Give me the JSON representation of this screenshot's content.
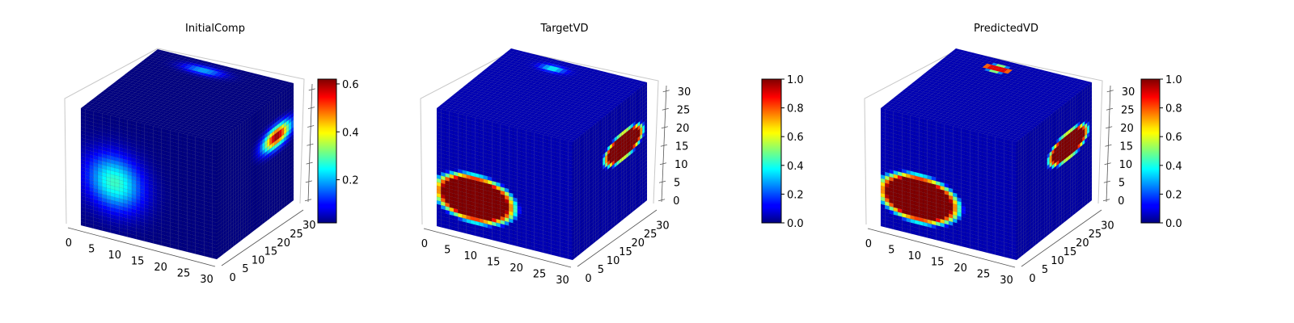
{
  "figure": {
    "panels": [
      {
        "title": "InitialComp",
        "colorbar": {
          "colormap": "jet",
          "min": 0.02,
          "max": 0.62,
          "ticks": [
            "0.2",
            "0.4",
            "0.6"
          ]
        },
        "x_ticks": [
          "0",
          "5",
          "10",
          "15",
          "20",
          "25",
          "30"
        ],
        "y_ticks": [
          "0",
          "5",
          "10",
          "15",
          "20",
          "25",
          "30"
        ],
        "z_ticks": []
      },
      {
        "title": "TargetVD",
        "colorbar": {
          "colormap": "jet",
          "min": 0.0,
          "max": 1.0,
          "ticks": [
            "0.0",
            "0.2",
            "0.4",
            "0.6",
            "0.8",
            "1.0"
          ]
        },
        "x_ticks": [
          "0",
          "5",
          "10",
          "15",
          "20",
          "25",
          "30"
        ],
        "y_ticks": [
          "0",
          "5",
          "10",
          "15",
          "20",
          "25",
          "30"
        ],
        "z_ticks": [
          "0",
          "5",
          "10",
          "15",
          "20",
          "25",
          "30"
        ]
      },
      {
        "title": "PredictedVD",
        "colorbar": {
          "colormap": "jet",
          "min": 0.0,
          "max": 1.0,
          "ticks": [
            "0.0",
            "0.2",
            "0.4",
            "0.6",
            "0.8",
            "1.0"
          ]
        },
        "x_ticks": [
          "0",
          "5",
          "10",
          "15",
          "20",
          "25",
          "30"
        ],
        "y_ticks": [
          "0",
          "5",
          "10",
          "15",
          "20",
          "25",
          "30"
        ],
        "z_ticks": [
          "0",
          "5",
          "10",
          "15",
          "20",
          "25",
          "30"
        ]
      }
    ]
  },
  "chart_data": [
    {
      "type": "heatmap",
      "subtype": "3d-voxel-cube",
      "title": "InitialComp",
      "xlim": [
        0,
        32
      ],
      "ylim": [
        0,
        32
      ],
      "zlim": [
        0,
        32
      ],
      "x_ticks": [
        0,
        5,
        10,
        15,
        20,
        25,
        30
      ],
      "y_ticks": [
        0,
        5,
        10,
        15,
        20,
        25,
        30
      ],
      "colormap": "jet",
      "color_range": [
        0.02,
        0.62
      ],
      "colorbar_ticks": [
        0.2,
        0.4,
        0.6
      ],
      "background_value": 0.02,
      "blobs": [
        {
          "face": "front",
          "center": [
            8,
            14
          ],
          "radius": [
            7,
            8
          ],
          "peak": 0.28,
          "falloff": "smooth"
        },
        {
          "face": "right",
          "center": [
            25,
            21
          ],
          "radius": [
            6,
            3
          ],
          "peak": 0.62,
          "falloff": "smooth"
        },
        {
          "face": "top",
          "center": [
            13,
            28
          ],
          "radius": [
            5,
            2
          ],
          "peak": 0.2,
          "falloff": "smooth"
        }
      ],
      "grid": true
    },
    {
      "type": "heatmap",
      "subtype": "3d-voxel-cube",
      "title": "TargetVD",
      "xlim": [
        0,
        32
      ],
      "ylim": [
        0,
        32
      ],
      "zlim": [
        0,
        32
      ],
      "x_ticks": [
        0,
        5,
        10,
        15,
        20,
        25,
        30
      ],
      "y_ticks": [
        0,
        5,
        10,
        15,
        20,
        25,
        30
      ],
      "z_ticks": [
        0,
        5,
        10,
        15,
        20,
        25,
        30
      ],
      "colormap": "jet",
      "color_range": [
        0,
        1
      ],
      "colorbar_ticks": [
        0.0,
        0.2,
        0.4,
        0.6,
        0.8,
        1.0
      ],
      "background_value": 0.05,
      "blobs": [
        {
          "face": "front",
          "center": [
            9,
            10
          ],
          "radius": [
            9,
            6
          ],
          "peak": 1.0,
          "falloff": "sharp"
        },
        {
          "face": "right",
          "center": [
            22,
            20
          ],
          "radius": [
            8,
            3.5
          ],
          "peak": 1.0,
          "falloff": "sharp"
        },
        {
          "face": "top",
          "center": [
            12,
            28
          ],
          "radius": [
            3,
            1.5
          ],
          "peak": 0.4,
          "falloff": "smooth"
        }
      ],
      "grid": true
    },
    {
      "type": "heatmap",
      "subtype": "3d-voxel-cube",
      "title": "PredictedVD",
      "xlim": [
        0,
        32
      ],
      "ylim": [
        0,
        32
      ],
      "zlim": [
        0,
        32
      ],
      "x_ticks": [
        0,
        5,
        10,
        15,
        20,
        25,
        30
      ],
      "y_ticks": [
        0,
        5,
        10,
        15,
        20,
        25,
        30
      ],
      "z_ticks": [
        0,
        5,
        10,
        15,
        20,
        25,
        30
      ],
      "colormap": "jet",
      "color_range": [
        0,
        1
      ],
      "colorbar_ticks": [
        0.0,
        0.2,
        0.4,
        0.6,
        0.8,
        1.0
      ],
      "background_value": 0.05,
      "blobs": [
        {
          "face": "front",
          "center": [
            9,
            10
          ],
          "radius": [
            9,
            6
          ],
          "peak": 1.0,
          "falloff": "sharp"
        },
        {
          "face": "right",
          "center": [
            22,
            20
          ],
          "radius": [
            8,
            3.5
          ],
          "peak": 1.0,
          "falloff": "sharp"
        },
        {
          "face": "top",
          "center": [
            12,
            28
          ],
          "radius": [
            3,
            1.5
          ],
          "peak": 0.9,
          "falloff": "sharp"
        }
      ],
      "grid": true
    }
  ]
}
